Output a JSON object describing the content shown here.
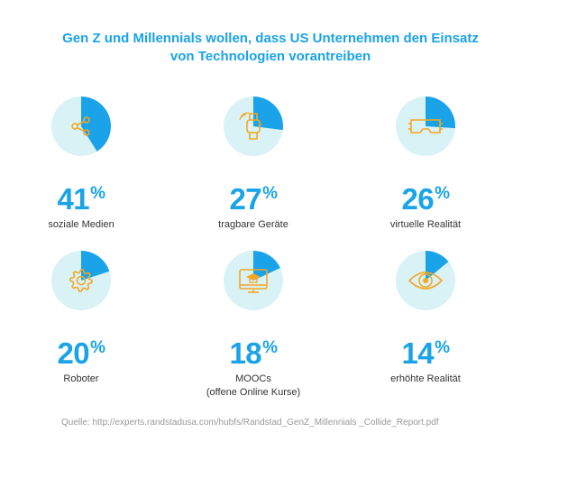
{
  "title_lines": [
    "Gen Z und Millennials wollen, dass US Unternehmen den Einsatz",
    "von Technologien vorantreiben"
  ],
  "pct_sign": "%",
  "colors": {
    "accent": "#1aa3e8",
    "pie_background": "#d9f2f5",
    "icon": "#f5a623",
    "text": "#333333",
    "muted": "#999999"
  },
  "stats": [
    {
      "value": "41",
      "label_lines": [
        "soziale Medien"
      ],
      "icon": "share-icon"
    },
    {
      "value": "27",
      "label_lines": [
        "tragbare Geräte"
      ],
      "icon": "smartwatch-icon"
    },
    {
      "value": "26",
      "label_lines": [
        "virtuelle Realität"
      ],
      "icon": "vr-headset-icon"
    },
    {
      "value": "20",
      "label_lines": [
        "Roboter"
      ],
      "icon": "gear-icon"
    },
    {
      "value": "18",
      "label_lines": [
        "MOOCs",
        "(offene Online Kurse)"
      ],
      "icon": "online-course-monitor-icon"
    },
    {
      "value": "14",
      "label_lines": [
        "erhöhte Realität"
      ],
      "icon": "eye-icon"
    }
  ],
  "chart_data": {
    "type": "pie",
    "categories": [
      "soziale Medien",
      "tragbare Geräte",
      "virtuelle Realität",
      "Roboter",
      "MOOCs (offene Online Kurse)",
      "erhöhte Realität"
    ],
    "values": [
      41,
      27,
      26,
      20,
      18,
      14
    ],
    "unit": "%",
    "title": "Gen Z und Millennials wollen, dass US Unternehmen den Einsatz von Technologien vorantreiben"
  },
  "source": "Quelle: http://experts.randstadusa.com/hubfs/Randstad_GenZ_Millennials _Collide_Report.pdf"
}
